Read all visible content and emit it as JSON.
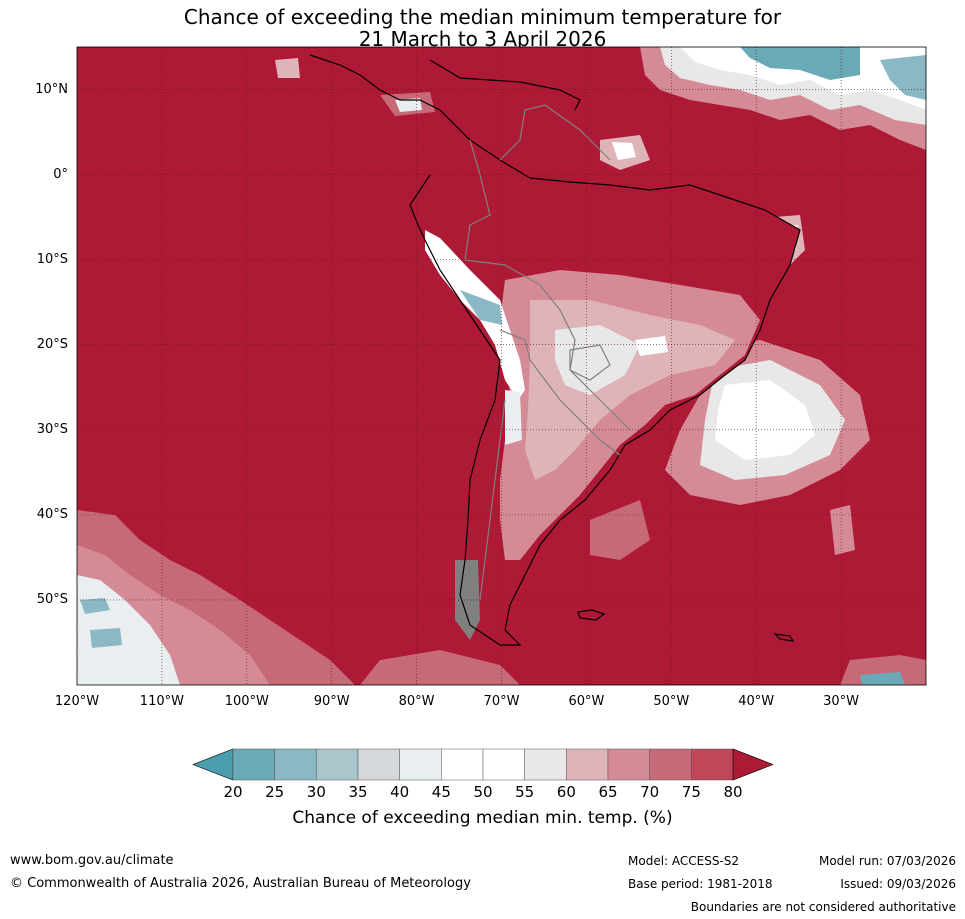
{
  "title": {
    "line1": "Chance of exceeding the median minimum temperature for",
    "line2": "21 March to 3 April 2026"
  },
  "axes": {
    "lat_labels": [
      "10°N",
      "0°",
      "10°S",
      "20°S",
      "30°S",
      "40°S",
      "50°S"
    ],
    "lat_values": [
      10,
      0,
      -10,
      -20,
      -30,
      -40,
      -50
    ],
    "lon_labels": [
      "120°W",
      "110°W",
      "100°W",
      "90°W",
      "80°W",
      "70°W",
      "60°W",
      "50°W",
      "40°W",
      "30°W"
    ],
    "lon_values": [
      -120,
      -110,
      -100,
      -90,
      -80,
      -70,
      -60,
      -50,
      -40,
      -30
    ],
    "lat_range": [
      -60,
      15
    ],
    "lon_range": [
      -120,
      -20
    ]
  },
  "colorbar": {
    "ticks": [
      "20",
      "25",
      "30",
      "35",
      "40",
      "45",
      "50",
      "55",
      "60",
      "65",
      "70",
      "75",
      "80"
    ],
    "colors": [
      "#6aaab7",
      "#8ab9c5",
      "#a9c6cc",
      "#d4d8da",
      "#e9eff1",
      "#ffffff",
      "#ffffff",
      "#e8e8e8",
      "#dfb4b9",
      "#d48b96",
      "#c76a78",
      "#bf4757"
    ],
    "under_color": "#4a9eae",
    "over_color": "#ae1a35",
    "label": "Chance of exceeding median min. temp. (%)"
  },
  "colors": {
    "background_sea": "#ae1a35",
    "grid": "#5a1a22",
    "land_outline": "#000000",
    "border": "#808080"
  },
  "footer": {
    "url": "www.bom.gov.au/climate",
    "copyright": "© Commonwealth of Australia 2026, Australian Bureau of Meteorology",
    "model": "Model: ACCESS-S2",
    "base_period": "Base period: 1981-2018",
    "model_run": "Model run: 07/03/2026",
    "issued": "Issued: 09/03/2026",
    "disclaimer": "Boundaries are not considered authoritative"
  }
}
